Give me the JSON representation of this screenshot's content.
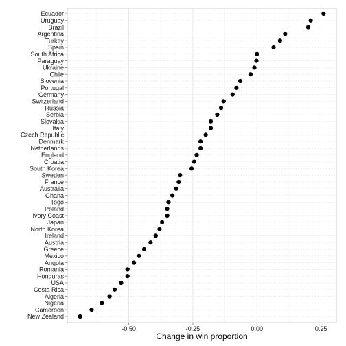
{
  "chart_data": {
    "type": "scatter",
    "xlabel": "Change in win proportion",
    "ylabel": "",
    "title": "",
    "xlim": [
      -0.74,
      0.31
    ],
    "xticks": [
      -0.5,
      -0.25,
      0.0,
      0.25
    ],
    "xtick_labels": [
      "-0.50",
      "-0.25",
      "0.00",
      "0.25"
    ],
    "grid": true,
    "point_color": "#000000",
    "categories": [
      "Ecuador",
      "Uruguay",
      "Brazil",
      "Argentina",
      "Turkey",
      "Spain",
      "South Africa",
      "Paraguay",
      "Ukraine",
      "Chile",
      "Slovenia",
      "Portugal",
      "Germany",
      "Switzerland",
      "Russia",
      "Serbia",
      "Slovakia",
      "Italy",
      "Czech Republic",
      "Denmark",
      "Netherlands",
      "England",
      "Croatia",
      "South Korea",
      "Sweden",
      "France",
      "Australia",
      "Ghana",
      "Togo",
      "Poland",
      "Ivory Coast",
      "Japan",
      "North Korea",
      "Ireland",
      "Austria",
      "Greece",
      "Mexico",
      "Angola",
      "Romania",
      "Honduras",
      "USA",
      "Costa Rica",
      "Algeria",
      "Nigeria",
      "Cameroon",
      "New Zealand"
    ],
    "values": [
      0.26,
      0.21,
      0.2,
      0.11,
      0.09,
      0.065,
      0.0,
      -0.002,
      -0.01,
      -0.025,
      -0.065,
      -0.08,
      -0.095,
      -0.13,
      -0.14,
      -0.155,
      -0.18,
      -0.18,
      -0.2,
      -0.22,
      -0.22,
      -0.235,
      -0.245,
      -0.255,
      -0.3,
      -0.305,
      -0.315,
      -0.33,
      -0.345,
      -0.35,
      -0.35,
      -0.37,
      -0.38,
      -0.395,
      -0.415,
      -0.44,
      -0.46,
      -0.48,
      -0.505,
      -0.505,
      -0.53,
      -0.555,
      -0.575,
      -0.605,
      -0.645,
      -0.69
    ]
  }
}
